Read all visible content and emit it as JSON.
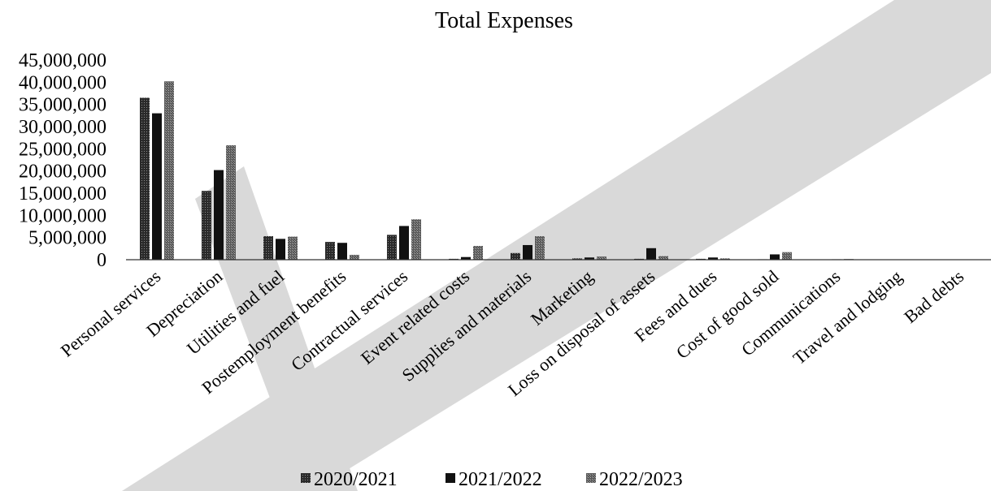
{
  "chart_data": {
    "type": "bar",
    "title": "Total Expenses",
    "xlabel": "",
    "ylabel": "",
    "ylim": [
      0,
      45000000
    ],
    "yticks": [
      0,
      5000000,
      10000000,
      15000000,
      20000000,
      25000000,
      30000000,
      35000000,
      40000000,
      45000000
    ],
    "ytick_labels": [
      "0",
      "5,000,000",
      "10,000,000",
      "15,000,000",
      "20,000,000",
      "25,000,000",
      "30,000,000",
      "35,000,000",
      "40,000,000",
      "45,000,000"
    ],
    "grid": false,
    "legend_position": "bottom",
    "categories": [
      "Personal services",
      "Depreciation",
      "Utilities and fuel",
      "Postemployment benefits",
      "Contractual services",
      "Event related costs",
      "Supplies and materials",
      "Marketing",
      "Loss on disposal of assets",
      "Fees and dues",
      "Cost of good sold",
      "Communications",
      "Travel and lodging",
      "Bad debts"
    ],
    "series": [
      {
        "name": "2020/2021",
        "color": "#3a3a3a",
        "values": [
          36500000,
          15500000,
          5300000,
          4000000,
          5600000,
          200000,
          1500000,
          300000,
          200000,
          200000,
          100000,
          50000,
          20000,
          10000
        ]
      },
      {
        "name": "2021/2022",
        "color": "#111111",
        "values": [
          33000000,
          20200000,
          4700000,
          3800000,
          7600000,
          600000,
          3300000,
          500000,
          2600000,
          500000,
          1200000,
          100000,
          50000,
          20000
        ]
      },
      {
        "name": "2022/2023",
        "color": "#707070",
        "values": [
          40200000,
          25800000,
          5200000,
          1100000,
          9100000,
          3100000,
          5300000,
          700000,
          800000,
          300000,
          1700000,
          150000,
          80000,
          30000
        ]
      }
    ]
  }
}
